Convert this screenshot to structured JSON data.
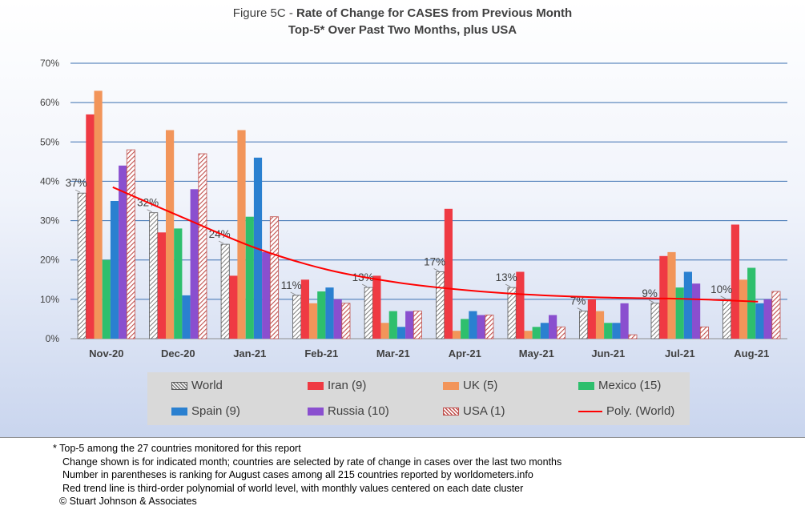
{
  "title": {
    "prefix": "Figure 5C - ",
    "main": "Rate of Change for CASES from Previous Month",
    "subtitle": "Top-5* Over Past Two Months, plus USA"
  },
  "footnotes": [
    "* Top-5 among the 27 countries monitored for this report",
    "Change shown is for indicated month; countries are selected by rate of change in cases over the last two months",
    "Number in parentheses is ranking for August cases among all 215 countries reported by worldometers.info",
    "Red trend line is third-order polynomial of world level, with monthly values centered on each date cluster",
    "© Stuart Johnson & Associates"
  ],
  "chart_data": {
    "type": "bar",
    "categories": [
      "Nov-20",
      "Dec-20",
      "Jan-21",
      "Feb-21",
      "Mar-21",
      "Apr-21",
      "May-21",
      "Jun-21",
      "Jul-21",
      "Aug-21"
    ],
    "ylim": [
      0,
      70
    ],
    "yticks": [
      "0%",
      "10%",
      "20%",
      "30%",
      "40%",
      "50%",
      "60%",
      "70%"
    ],
    "grid": true,
    "legend_position": "bottom",
    "series": [
      {
        "name": "World",
        "color": "#d9d9d9",
        "pattern": "hatch-gray",
        "values": [
          37,
          32,
          24,
          11,
          13,
          17,
          13,
          7,
          9,
          10
        ]
      },
      {
        "name": "Iran (9)",
        "color": "#ef3a43",
        "pattern": "solid",
        "values": [
          57,
          27,
          16,
          15,
          16,
          33,
          17,
          10,
          21,
          29
        ]
      },
      {
        "name": "UK (5)",
        "color": "#f2955a",
        "pattern": "solid",
        "values": [
          63,
          53,
          53,
          9,
          4,
          2,
          2,
          7,
          22,
          15
        ]
      },
      {
        "name": "Mexico (15)",
        "color": "#2ebf6d",
        "pattern": "solid",
        "values": [
          20,
          28,
          31,
          12,
          7,
          5,
          3,
          4,
          13,
          18
        ]
      },
      {
        "name": "Spain (9)",
        "color": "#2a80d0",
        "pattern": "solid",
        "values": [
          35,
          11,
          46,
          13,
          3,
          7,
          4,
          4,
          17,
          9
        ]
      },
      {
        "name": "Russia (10)",
        "color": "#8a4fcf",
        "pattern": "solid",
        "values": [
          44,
          38,
          22,
          10,
          7,
          6,
          6,
          9,
          14,
          10
        ]
      },
      {
        "name": "USA (1)",
        "color": "#c0504d",
        "pattern": "hatch-red",
        "values": [
          48,
          47,
          31,
          9,
          7,
          6,
          3,
          1,
          3,
          12
        ]
      }
    ],
    "world_labels": [
      "37%",
      "32%",
      "24%",
      "11%",
      "13%",
      "17%",
      "13%",
      "7%",
      "9%",
      "10%"
    ],
    "trend": {
      "name": "Poly. (World)",
      "color": "#ff0000",
      "order": 3,
      "values": [
        38.5,
        30.6,
        23.0,
        17.5,
        14.2,
        12.2,
        11.0,
        10.4,
        10.1,
        9.4
      ]
    }
  }
}
